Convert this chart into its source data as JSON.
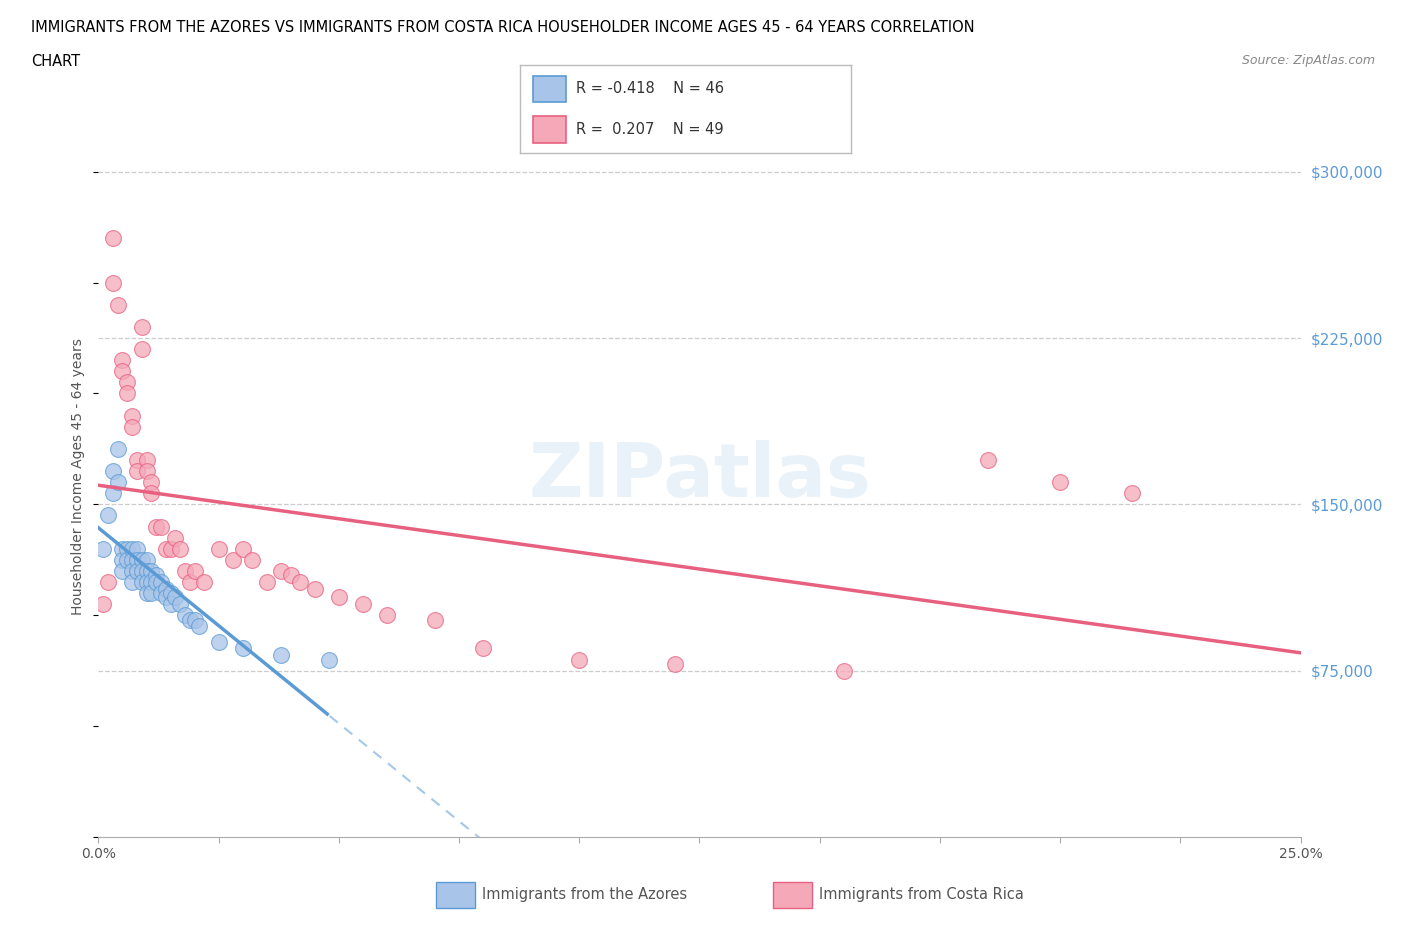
{
  "title_line1": "IMMIGRANTS FROM THE AZORES VS IMMIGRANTS FROM COSTA RICA HOUSEHOLDER INCOME AGES 45 - 64 YEARS CORRELATION",
  "title_line2": "CHART",
  "source_text": "Source: ZipAtlas.com",
  "ylabel": "Householder Income Ages 45 - 64 years",
  "xmin": 0.0,
  "xmax": 0.25,
  "ymin": 0,
  "ymax": 325000,
  "yticks": [
    0,
    75000,
    150000,
    225000,
    300000
  ],
  "ytick_labels": [
    "",
    "$75,000",
    "$150,000",
    "$225,000",
    "$300,000"
  ],
  "xticks": [
    0.0,
    0.025,
    0.05,
    0.075,
    0.1,
    0.125,
    0.15,
    0.175,
    0.2,
    0.225,
    0.25
  ],
  "xtick_labels_shown": {
    "0.0": "0.0%",
    "0.25": "25.0%"
  },
  "grid_color": "#cccccc",
  "background_color": "#ffffff",
  "watermark_text": "ZIPatlas",
  "legend_r1": "R = -0.418",
  "legend_n1": "N = 46",
  "legend_r2": "R =  0.207",
  "legend_n2": "N = 49",
  "color_azores": "#a8c4e8",
  "color_costarica": "#f4a8b8",
  "line_color_azores": "#5b9bd5",
  "line_color_costarica": "#e86080",
  "label_azores": "Immigrants from the Azores",
  "label_costarica": "Immigrants from Costa Rica",
  "azores_x": [
    0.001,
    0.002,
    0.003,
    0.003,
    0.004,
    0.004,
    0.005,
    0.005,
    0.005,
    0.006,
    0.006,
    0.007,
    0.007,
    0.007,
    0.007,
    0.008,
    0.008,
    0.008,
    0.009,
    0.009,
    0.009,
    0.01,
    0.01,
    0.01,
    0.01,
    0.011,
    0.011,
    0.011,
    0.012,
    0.012,
    0.013,
    0.013,
    0.014,
    0.014,
    0.015,
    0.015,
    0.016,
    0.017,
    0.018,
    0.019,
    0.02,
    0.021,
    0.025,
    0.03,
    0.038,
    0.048
  ],
  "azores_y": [
    130000,
    145000,
    165000,
    155000,
    175000,
    160000,
    130000,
    125000,
    120000,
    130000,
    125000,
    130000,
    125000,
    120000,
    115000,
    130000,
    125000,
    120000,
    125000,
    120000,
    115000,
    125000,
    120000,
    115000,
    110000,
    120000,
    115000,
    110000,
    118000,
    115000,
    115000,
    110000,
    112000,
    108000,
    110000,
    105000,
    108000,
    105000,
    100000,
    98000,
    98000,
    95000,
    88000,
    85000,
    82000,
    80000
  ],
  "costarica_x": [
    0.001,
    0.002,
    0.003,
    0.003,
    0.004,
    0.005,
    0.005,
    0.006,
    0.006,
    0.007,
    0.007,
    0.008,
    0.008,
    0.009,
    0.009,
    0.01,
    0.01,
    0.011,
    0.011,
    0.012,
    0.013,
    0.014,
    0.015,
    0.016,
    0.017,
    0.018,
    0.019,
    0.02,
    0.022,
    0.025,
    0.028,
    0.03,
    0.032,
    0.035,
    0.038,
    0.04,
    0.042,
    0.045,
    0.05,
    0.055,
    0.06,
    0.07,
    0.08,
    0.1,
    0.12,
    0.155,
    0.185,
    0.2,
    0.215
  ],
  "costarica_y": [
    105000,
    115000,
    270000,
    250000,
    240000,
    215000,
    210000,
    205000,
    200000,
    190000,
    185000,
    170000,
    165000,
    230000,
    220000,
    170000,
    165000,
    160000,
    155000,
    140000,
    140000,
    130000,
    130000,
    135000,
    130000,
    120000,
    115000,
    120000,
    115000,
    130000,
    125000,
    130000,
    125000,
    115000,
    120000,
    118000,
    115000,
    112000,
    108000,
    105000,
    100000,
    98000,
    85000,
    80000,
    78000,
    75000,
    170000,
    160000,
    155000
  ]
}
